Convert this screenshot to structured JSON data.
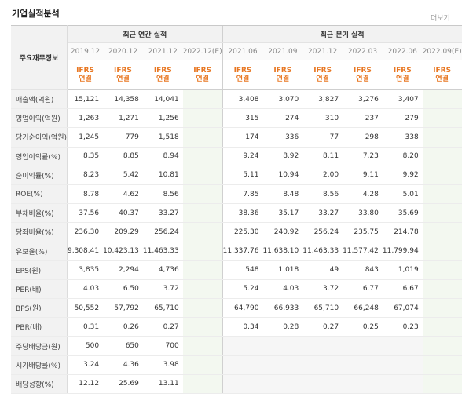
{
  "header": {
    "title": "기업실적분석",
    "more_label": "더보기"
  },
  "table": {
    "item_header": "주요재무정보",
    "annual_header": "최근 연간 실적",
    "quarter_header": "최근 분기 실적",
    "annual_periods": [
      "2019.12",
      "2020.12",
      "2021.12",
      "2022.12(E)"
    ],
    "quarter_periods": [
      "2021.06",
      "2021.09",
      "2021.12",
      "2022.03",
      "2022.06",
      "2022.09(E)"
    ],
    "ifrs_top": "IFRS",
    "ifrs_bottom": "연결",
    "rows": [
      {
        "label": "매출액(억원)",
        "annual": [
          "15,121",
          "14,358",
          "14,041",
          ""
        ],
        "quarter": [
          "3,408",
          "3,070",
          "3,827",
          "3,276",
          "3,407",
          ""
        ]
      },
      {
        "label": "영업이익(억원)",
        "annual": [
          "1,263",
          "1,271",
          "1,256",
          ""
        ],
        "quarter": [
          "315",
          "274",
          "310",
          "237",
          "279",
          ""
        ]
      },
      {
        "label": "당기순이익(억원)",
        "annual": [
          "1,245",
          "779",
          "1,518",
          ""
        ],
        "quarter": [
          "174",
          "336",
          "77",
          "298",
          "338",
          ""
        ]
      },
      {
        "label": "영업이익률(%)",
        "annual": [
          "8.35",
          "8.85",
          "8.94",
          ""
        ],
        "quarter": [
          "9.24",
          "8.92",
          "8.11",
          "7.23",
          "8.20",
          ""
        ]
      },
      {
        "label": "순이익률(%)",
        "annual": [
          "8.23",
          "5.42",
          "10.81",
          ""
        ],
        "quarter": [
          "5.11",
          "10.94",
          "2.00",
          "9.11",
          "9.92",
          ""
        ]
      },
      {
        "label": "ROE(%)",
        "annual": [
          "8.78",
          "4.62",
          "8.56",
          ""
        ],
        "quarter": [
          "7.85",
          "8.48",
          "8.56",
          "4.28",
          "5.01",
          ""
        ]
      },
      {
        "label": "부채비율(%)",
        "annual": [
          "37.56",
          "40.37",
          "33.27",
          ""
        ],
        "quarter": [
          "38.36",
          "35.17",
          "33.27",
          "33.80",
          "35.69",
          ""
        ]
      },
      {
        "label": "당좌비율(%)",
        "annual": [
          "236.30",
          "209.29",
          "256.24",
          ""
        ],
        "quarter": [
          "225.30",
          "240.92",
          "256.24",
          "235.75",
          "214.78",
          ""
        ]
      },
      {
        "label": "유보율(%)",
        "annual": [
          "9,308.41",
          "10,423.13",
          "11,463.33",
          ""
        ],
        "quarter": [
          "11,337.76",
          "11,638.10",
          "11,463.33",
          "11,577.42",
          "11,799.94",
          ""
        ]
      },
      {
        "label": "EPS(원)",
        "annual": [
          "3,835",
          "2,294",
          "4,736",
          ""
        ],
        "quarter": [
          "548",
          "1,018",
          "49",
          "843",
          "1,019",
          ""
        ]
      },
      {
        "label": "PER(배)",
        "annual": [
          "4.03",
          "6.50",
          "3.72",
          ""
        ],
        "quarter": [
          "5.24",
          "4.03",
          "3.72",
          "6.77",
          "6.67",
          ""
        ]
      },
      {
        "label": "BPS(원)",
        "annual": [
          "50,552",
          "57,792",
          "65,710",
          ""
        ],
        "quarter": [
          "64,790",
          "66,933",
          "65,710",
          "66,248",
          "67,074",
          ""
        ]
      },
      {
        "label": "PBR(배)",
        "annual": [
          "0.31",
          "0.26",
          "0.27",
          ""
        ],
        "quarter": [
          "0.34",
          "0.28",
          "0.27",
          "0.25",
          "0.23",
          ""
        ]
      },
      {
        "label": "주당배당금(원)",
        "annual": [
          "500",
          "650",
          "700",
          ""
        ],
        "quarter": [
          "",
          "",
          "",
          "",
          "",
          ""
        ]
      },
      {
        "label": "시가배당률(%)",
        "annual": [
          "3.24",
          "4.36",
          "3.98",
          ""
        ],
        "quarter": [
          "",
          "",
          "",
          "",
          "",
          ""
        ]
      },
      {
        "label": "배당성향(%)",
        "annual": [
          "12.12",
          "25.69",
          "13.11",
          ""
        ],
        "quarter": [
          "",
          "",
          "",
          "",
          "",
          ""
        ]
      }
    ]
  }
}
